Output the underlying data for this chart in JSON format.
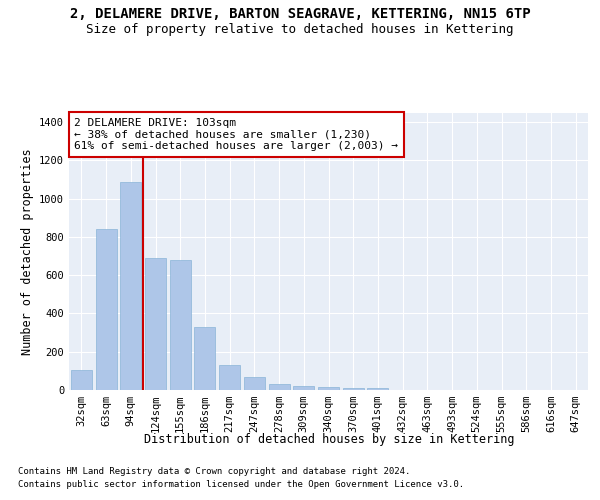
{
  "title_line1": "2, DELAMERE DRIVE, BARTON SEAGRAVE, KETTERING, NN15 6TP",
  "title_line2": "Size of property relative to detached houses in Kettering",
  "xlabel": "Distribution of detached houses by size in Kettering",
  "ylabel": "Number of detached properties",
  "categories": [
    "32sqm",
    "63sqm",
    "94sqm",
    "124sqm",
    "155sqm",
    "186sqm",
    "217sqm",
    "247sqm",
    "278sqm",
    "309sqm",
    "340sqm",
    "370sqm",
    "401sqm",
    "432sqm",
    "463sqm",
    "493sqm",
    "524sqm",
    "555sqm",
    "586sqm",
    "616sqm",
    "647sqm"
  ],
  "values": [
    105,
    840,
    1085,
    690,
    680,
    330,
    130,
    68,
    30,
    20,
    15,
    10,
    10,
    0,
    0,
    0,
    0,
    0,
    0,
    0,
    0
  ],
  "bar_color": "#aec6e8",
  "bar_edge_color": "#8ab4d8",
  "red_line_index": 2,
  "annotation_text": "2 DELAMERE DRIVE: 103sqm\n← 38% of detached houses are smaller (1,230)\n61% of semi-detached houses are larger (2,003) →",
  "annotation_box_color": "#ffffff",
  "annotation_edge_color": "#cc0000",
  "ylim": [
    0,
    1450
  ],
  "yticks": [
    0,
    200,
    400,
    600,
    800,
    1000,
    1200,
    1400
  ],
  "background_color": "#e8eef7",
  "footer_line1": "Contains HM Land Registry data © Crown copyright and database right 2024.",
  "footer_line2": "Contains public sector information licensed under the Open Government Licence v3.0.",
  "title_fontsize": 10,
  "subtitle_fontsize": 9,
  "axis_label_fontsize": 8.5,
  "tick_fontsize": 7.5,
  "annotation_fontsize": 8,
  "footer_fontsize": 6.5
}
